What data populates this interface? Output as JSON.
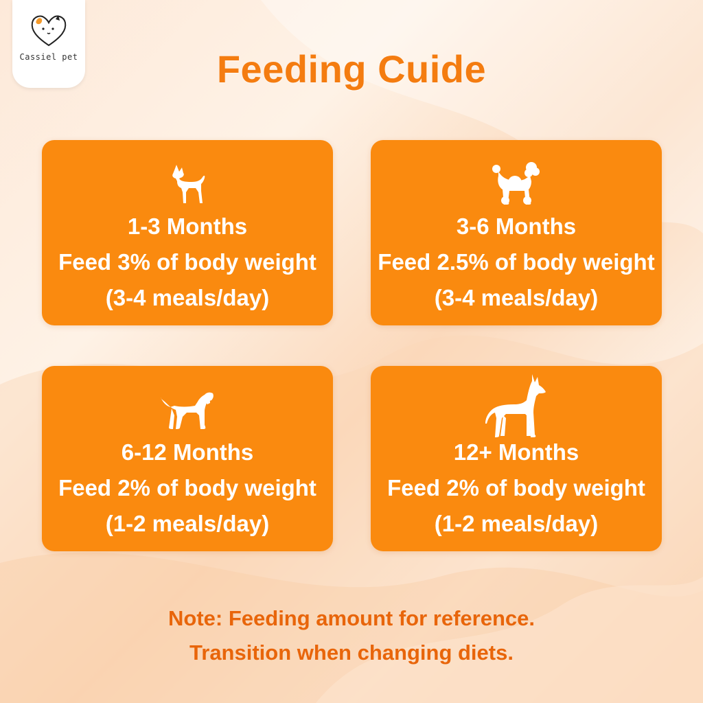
{
  "brand": {
    "name": "Cassiel pet",
    "logo_icon": "heart-dog-cat-icon"
  },
  "title": "Feeding Cuide",
  "colors": {
    "card": "#fa8a0f",
    "title": "#f47c10",
    "note": "#e8650a"
  },
  "cards": [
    {
      "icon": "chihuahua-icon",
      "age": "1-3 Months",
      "feed": "Feed 3% of body weight",
      "meals": "(3-4 meals/day)"
    },
    {
      "icon": "poodle-icon",
      "age": "3-6 Months",
      "feed": "Feed 2.5% of body weight",
      "meals": "(3-4 meals/day)"
    },
    {
      "icon": "beagle-icon",
      "age": "6-12 Months",
      "feed": "Feed 2% of body weight",
      "meals": "(1-2 meals/day)"
    },
    {
      "icon": "doberman-icon",
      "age": "12+ Months",
      "feed": "Feed 2% of body weight",
      "meals": "(1-2 meals/day)"
    }
  ],
  "note": {
    "line1": "Note: Feeding amount for reference.",
    "line2": "Transition when changing diets."
  }
}
